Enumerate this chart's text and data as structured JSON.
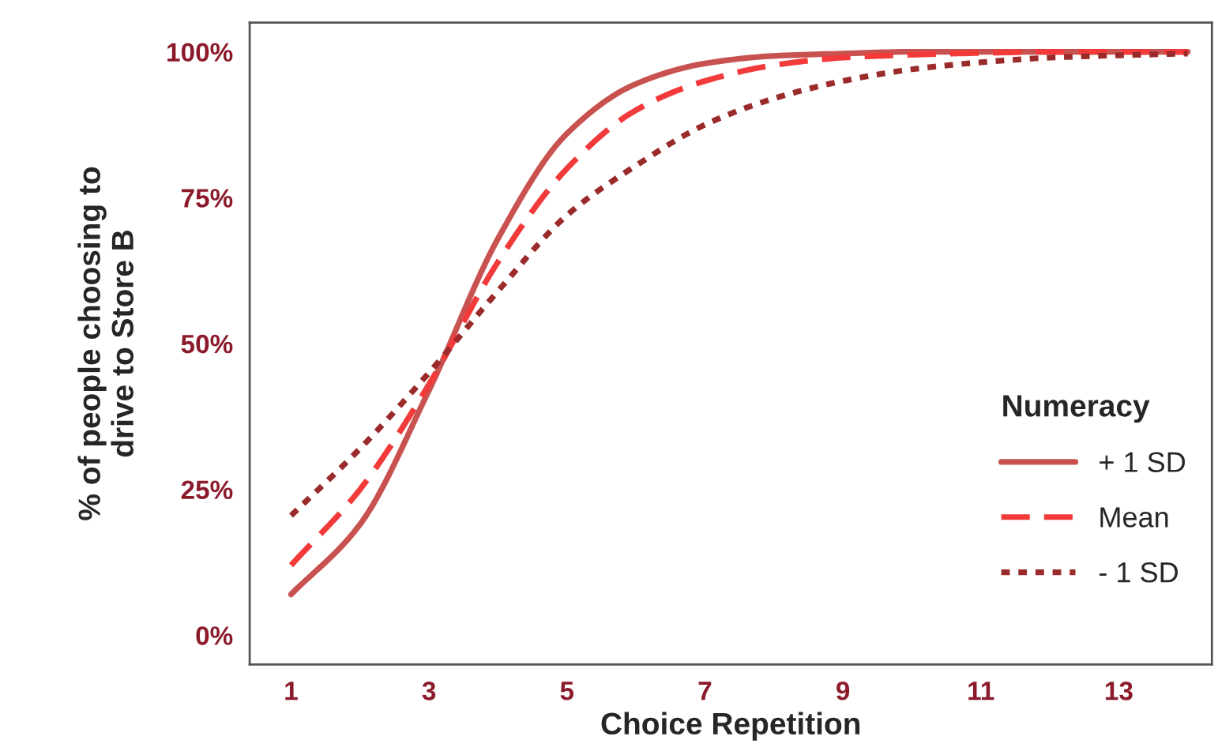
{
  "chart_data": {
    "type": "line",
    "xlabel": "Choice Repetition",
    "ylabel": "% of people choosing to\ndrive to Store B",
    "legend_title": "Numeracy",
    "legend": "right",
    "grid": false,
    "x": [
      1,
      2,
      3,
      4,
      5,
      6,
      7,
      8,
      9,
      10,
      11,
      12,
      13,
      14
    ],
    "xlim": [
      0.4,
      14.35
    ],
    "xticks": [
      1,
      3,
      5,
      7,
      9,
      11,
      13
    ],
    "ylim": [
      -5,
      105
    ],
    "yticks": [
      {
        "value": 0,
        "label": "0%"
      },
      {
        "value": 25,
        "label": "25%"
      },
      {
        "value": 50,
        "label": "50%"
      },
      {
        "value": 75,
        "label": "75%"
      },
      {
        "value": 100,
        "label": "100%"
      }
    ],
    "series": [
      {
        "name": "+ 1 SD",
        "color": "#c85250",
        "line_style": "solid",
        "values": [
          7,
          19,
          42,
          68,
          86,
          94.5,
          98,
          99.3,
          99.7,
          100,
          100,
          100,
          100,
          100
        ]
      },
      {
        "name": "Mean",
        "color": "#f23a3a",
        "line_style": "dashed",
        "values": [
          12,
          25,
          43,
          64,
          80,
          90,
          95,
          97.7,
          99,
          99.5,
          99.8,
          100,
          100,
          100
        ]
      },
      {
        "name": "- 1 SD",
        "color": "#9b2a2a",
        "line_style": "dotted",
        "values": [
          20.5,
          32,
          45,
          59,
          72,
          80.5,
          87.5,
          92,
          95,
          97,
          98.2,
          99,
          99.4,
          99.7
        ]
      }
    ]
  }
}
